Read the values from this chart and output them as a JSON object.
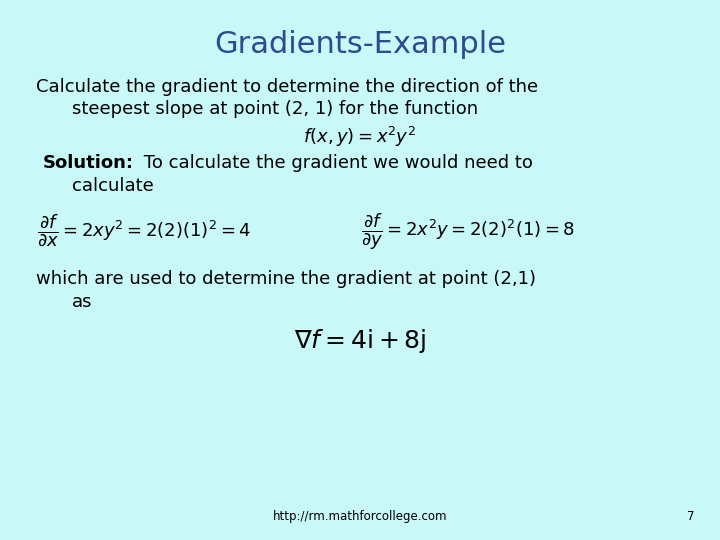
{
  "title": "Gradients-Example",
  "title_color": "#2E4B8F",
  "title_fontsize": 22,
  "bg_color": "#C8F8F8",
  "text_color": "#000000",
  "body_fontsize": 13,
  "footer_text": "http://rm.mathforcollege.com",
  "footer_page": "7",
  "line1": "Calculate the gradient to determine the direction of the",
  "line2": "steepest slope at point (2, 1) for the function",
  "formula1": "$f(x,y)= x^2y^2$",
  "solution_bold": "Solution:",
  "solution_rest": " To calculate the gradient we would need to",
  "solution_line2": "calculate",
  "partial_x": "$\\dfrac{\\partial f}{\\partial x} = 2xy^2 = 2(2)(1)^2 = 4$",
  "partial_y": "$\\dfrac{\\partial f}{\\partial y} = 2x^2y = 2(2)^2(1) = 8$",
  "which_line1": "which are used to determine the gradient at point (2,1)",
  "which_line2": "as",
  "gradient_formula": "$\\nabla f = 4\\mathrm{i} + 8\\mathrm{j}$",
  "gradient_fontsize": 18
}
